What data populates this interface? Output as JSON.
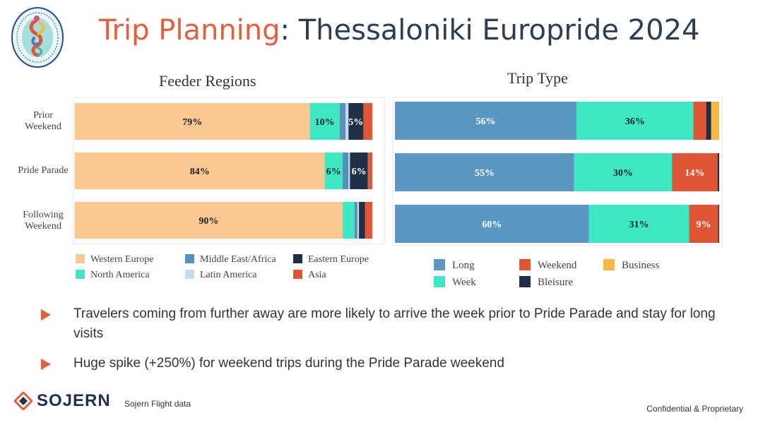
{
  "header": {
    "title_highlight": "Trip Planning",
    "title_rest": ": Thessaloniki Europride 2024"
  },
  "chart_data": [
    {
      "type": "bar",
      "orientation": "horizontal",
      "stacked": "percent",
      "title": "Feeder Regions",
      "categories": [
        "Prior Weekend",
        "Pride Parade",
        "Following Weekend"
      ],
      "series": [
        {
          "name": "Western Europe",
          "color": "#fac992",
          "values": [
            79,
            84,
            90
          ],
          "labels": [
            "79%",
            "84%",
            "90%"
          ]
        },
        {
          "name": "North America",
          "color": "#3de8c2",
          "values": [
            10,
            6,
            4
          ],
          "labels": [
            "10%",
            "6%",
            ""
          ]
        },
        {
          "name": "Middle East/Africa",
          "color": "#5b8fbb",
          "values": [
            2,
            2,
            1
          ],
          "labels": [
            "",
            "",
            ""
          ]
        },
        {
          "name": "Latin America",
          "color": "#c5dbef",
          "values": [
            1,
            0.5,
            0.5
          ],
          "labels": [
            "",
            "",
            ""
          ]
        },
        {
          "name": "Eastern Europe",
          "color": "#1f2f45",
          "values": [
            5,
            6,
            2
          ],
          "labels": [
            "5%",
            "6%",
            ""
          ]
        },
        {
          "name": "Asia",
          "color": "#e05535",
          "values": [
            3,
            1.5,
            2.5
          ],
          "labels": [
            "",
            "",
            ""
          ]
        }
      ],
      "legend": "bottom"
    },
    {
      "type": "bar",
      "orientation": "horizontal",
      "stacked": "percent",
      "title": "Trip Type",
      "categories": [
        "Prior Weekend",
        "Pride Parade",
        "Following Weekend"
      ],
      "series": [
        {
          "name": "Long",
          "color": "#5b97c3",
          "values": [
            56,
            55,
            60
          ],
          "labels": [
            "56%",
            "55%",
            "60%"
          ]
        },
        {
          "name": "Week",
          "color": "#3de8c2",
          "values": [
            36,
            30,
            31
          ],
          "labels": [
            "36%",
            "30%",
            "31%"
          ]
        },
        {
          "name": "Weekend",
          "color": "#e05535",
          "values": [
            4,
            14,
            9
          ],
          "labels": [
            "",
            "14%",
            "9%"
          ]
        },
        {
          "name": "Bleisure",
          "color": "#1f2f45",
          "values": [
            1.5,
            0.5,
            0.3
          ],
          "labels": [
            "",
            "",
            ""
          ]
        },
        {
          "name": "Business",
          "color": "#f5b942",
          "values": [
            2.5,
            0,
            0
          ],
          "labels": [
            "",
            "",
            ""
          ]
        }
      ],
      "legend": "bottom"
    }
  ],
  "row_labels": [
    {
      "line1": "Prior",
      "line2": "Weekend"
    },
    {
      "line1": "Pride Parade",
      "line2": ""
    },
    {
      "line1": "Following",
      "line2": "Weekend"
    }
  ],
  "legend_feeder": [
    {
      "name": "Western Europe",
      "color": "#fac992"
    },
    {
      "name": "Middle East/Africa",
      "color": "#5b8fbb"
    },
    {
      "name": "Eastern Europe",
      "color": "#1f2f45"
    },
    {
      "name": "North America",
      "color": "#3de8c2"
    },
    {
      "name": "Latin America",
      "color": "#c5dbef"
    },
    {
      "name": "Asia",
      "color": "#e05535"
    }
  ],
  "legend_trip": [
    {
      "name": "Long",
      "color": "#5b97c3"
    },
    {
      "name": "Weekend",
      "color": "#e05535"
    },
    {
      "name": "Business",
      "color": "#f5b942"
    },
    {
      "name": "Week",
      "color": "#3de8c2"
    },
    {
      "name": "Bleisure",
      "color": "#1f2f45"
    }
  ],
  "bullets": [
    "Travelers coming from further away are more likely to arrive the week prior to Pride Parade and stay for long visits",
    "Huge spike (+250%) for weekend trips during the Pride Parade weekend"
  ],
  "footer": {
    "brand": "SOJERN",
    "source": "Sojern Flight data",
    "confidential": "Confidential & Proprietary"
  },
  "logo_text": "EUROPRIDE 2024 THESSALONIKI · PERIPHERY PROGRESS PRIDE",
  "colors": {
    "accent": "#e2603f",
    "title": "#2d3e50"
  }
}
